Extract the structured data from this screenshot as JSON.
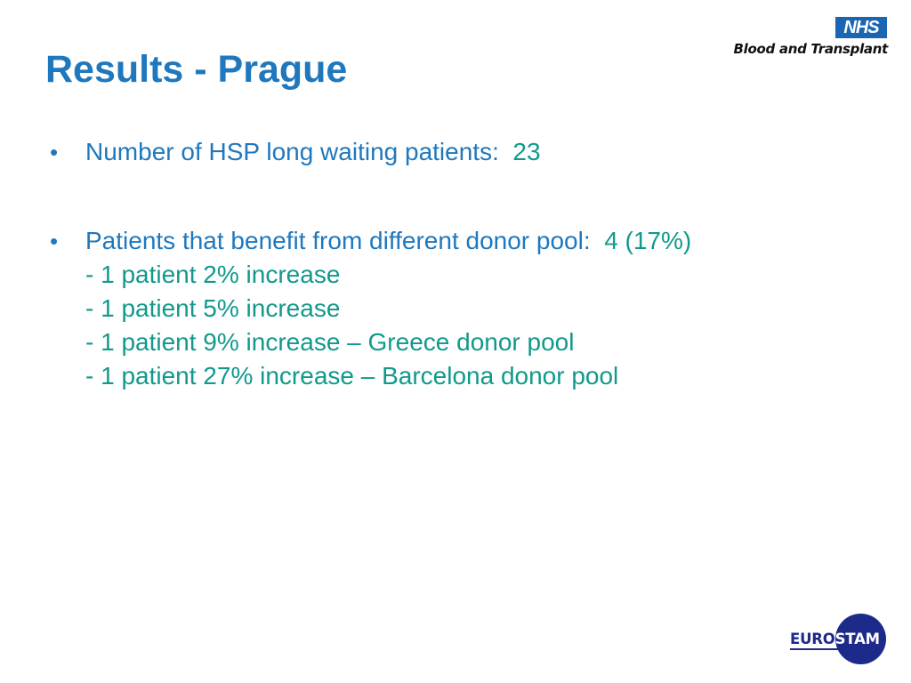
{
  "slide": {
    "title": "Results - Prague"
  },
  "header_logo": {
    "badge": "NHS",
    "organisation": "Blood and Transplant"
  },
  "bullets": [
    {
      "marker": "•",
      "label": "Number of HSP long waiting patients:",
      "value": "23",
      "sub_items": []
    },
    {
      "marker": "•",
      "label": "Patients that benefit from different donor pool:",
      "value": "4 (17%)",
      "sub_items": [
        "- 1 patient 2% increase",
        "- 1 patient 5% increase",
        "- 1 patient 9% increase – Greece donor pool",
        "- 1 patient 27% increase – Barcelona donor pool"
      ]
    }
  ],
  "footer_logo": {
    "part1": "EURO",
    "part2": "STAM"
  },
  "colors": {
    "title": "#1f78be",
    "value": "#11998c",
    "nhs_blue": "#1a66b3",
    "eurostam_navy": "#1c2a8a"
  }
}
